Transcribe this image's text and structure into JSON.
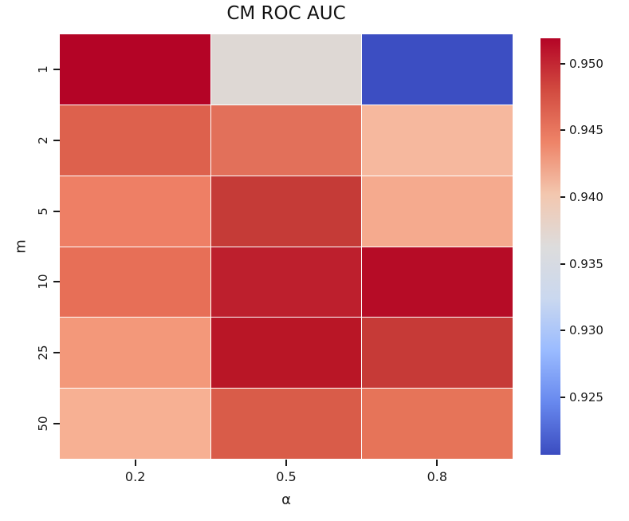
{
  "chart_data": {
    "type": "heatmap",
    "title": "CM ROC AUC",
    "xlabel": "α",
    "ylabel": "m",
    "x_categories": [
      "0.2",
      "0.5",
      "0.8"
    ],
    "y_categories": [
      "1",
      "2",
      "5",
      "10",
      "25",
      "50"
    ],
    "values": [
      [
        0.952,
        0.937,
        0.921
      ],
      [
        0.948,
        0.947,
        0.941
      ],
      [
        0.946,
        0.95,
        0.942
      ],
      [
        0.947,
        0.951,
        0.9515
      ],
      [
        0.944,
        0.951,
        0.95
      ],
      [
        0.942,
        0.948,
        0.947
      ]
    ],
    "cell_colors": [
      [
        "#b40426",
        "#ded8d4",
        "#3c4ec2"
      ],
      [
        "#dd614d",
        "#e2705a",
        "#f6b89e"
      ],
      [
        "#ee7f65",
        "#c53b37",
        "#f5aa8e"
      ],
      [
        "#e76f57",
        "#bd1f2d",
        "#b60c26"
      ],
      [
        "#f3987a",
        "#b91626",
        "#c63a37"
      ],
      [
        "#f7b093",
        "#d95c49",
        "#e67459"
      ]
    ],
    "grid": "off",
    "legend": "none",
    "colorbar": {
      "position": "right",
      "colormap": "coolwarm",
      "vmin": 0.9207,
      "vmax": 0.9519,
      "tick_labels": [
        "0.950",
        "0.945",
        "0.940",
        "0.935",
        "0.930",
        "0.925"
      ],
      "tick_values": [
        0.95,
        0.945,
        0.94,
        0.935,
        0.93,
        0.925
      ],
      "gradient_stops": [
        {
          "pos": 0.0,
          "color": "#b40426"
        },
        {
          "pos": 12.5,
          "color": "#d24b40"
        },
        {
          "pos": 25.0,
          "color": "#ee8468"
        },
        {
          "pos": 37.5,
          "color": "#f3c7af"
        },
        {
          "pos": 50.0,
          "color": "#dddcdc"
        },
        {
          "pos": 62.5,
          "color": "#cad8ef"
        },
        {
          "pos": 75.0,
          "color": "#9abbff"
        },
        {
          "pos": 87.5,
          "color": "#6788ee"
        },
        {
          "pos": 100.0,
          "color": "#3b4cc0"
        }
      ]
    }
  }
}
